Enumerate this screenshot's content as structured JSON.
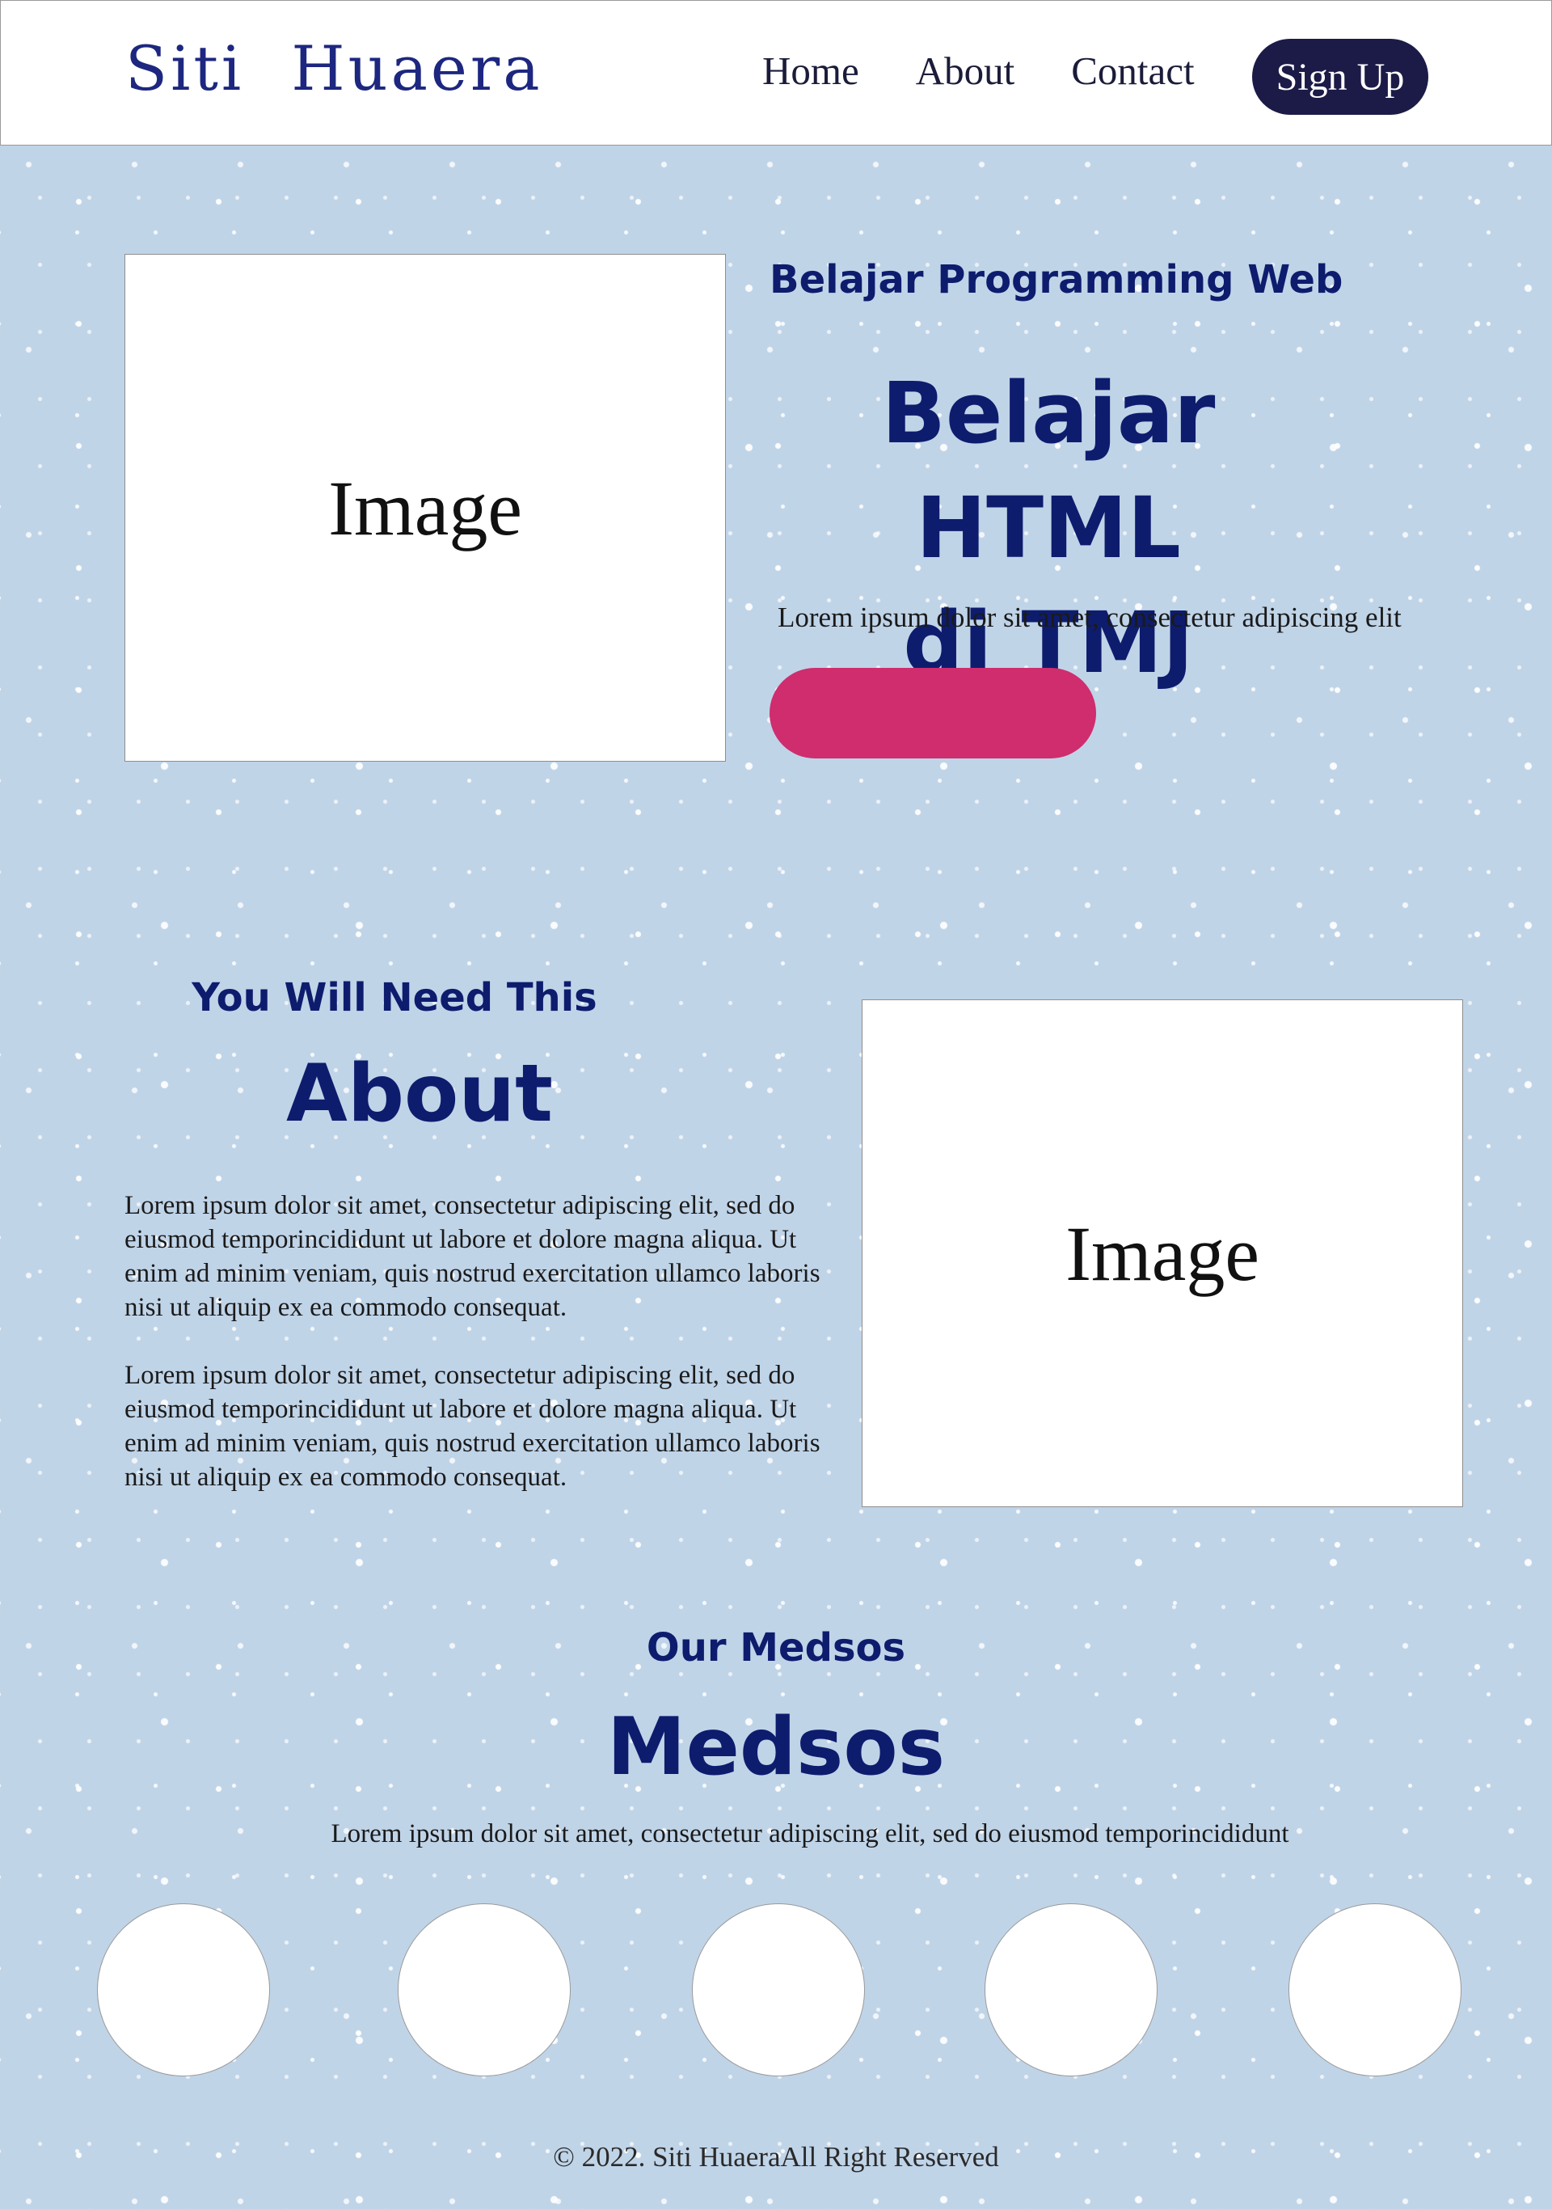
{
  "header": {
    "brand": "Siti  Huaera",
    "nav": [
      "Home",
      "About",
      "Contact"
    ],
    "signup_label": "Sign Up"
  },
  "hero": {
    "image_label": "Image",
    "subtitle": "Belajar Programming Web",
    "title_line1": "Belajar HTML",
    "title_line2": "di TMJ",
    "text": "Lorem ipsum dolor sit amet, consectetur adipiscing elit",
    "button_label": ""
  },
  "about": {
    "subtitle": "You Will Need This",
    "title": "About",
    "paragraphs": [
      "Lorem ipsum dolor sit amet, consectetur adipiscing elit, sed do eiusmod temporincididunt ut labore et dolore magna aliqua. Ut enim ad minim veniam, quis nostrud exercitation ullamco laboris nisi ut aliquip ex ea commodo consequat.",
      "Lorem ipsum dolor sit amet, consectetur adipiscing elit, sed do eiusmod temporincididunt ut labore et dolore magna aliqua. Ut enim ad minim veniam, quis nostrud exercitation ullamco laboris nisi ut aliquip ex ea commodo consequat."
    ],
    "image_label": "Image"
  },
  "medsos": {
    "subtitle": "Our Medsos",
    "title": "Medsos",
    "text": "Lorem ipsum dolor sit amet, consectetur adipiscing elit, sed do eiusmod temporincididunt"
  },
  "footer": {
    "text": "© 2022. Siti HuaeraAll Right Reserved"
  },
  "colors": {
    "background": "#c0d4e8",
    "heading": "#0e1c6e",
    "signup": "#1c1b47",
    "hero_button": "#cf2d6d"
  }
}
